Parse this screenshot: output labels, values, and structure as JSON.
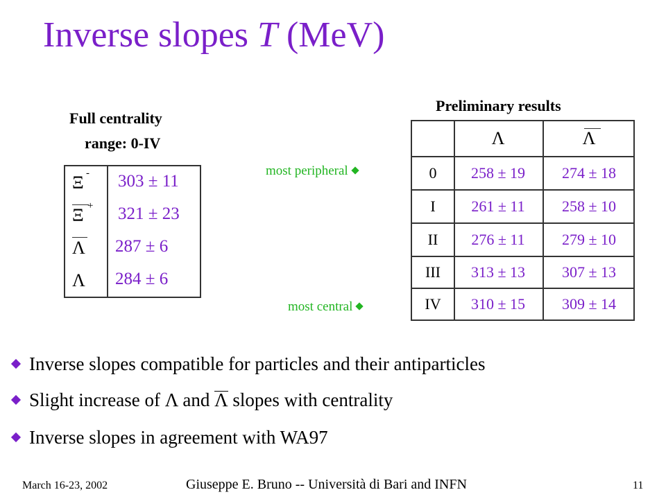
{
  "title": {
    "prefix": "Inverse slopes ",
    "variable": "T",
    "suffix": " (MeV)"
  },
  "left_table": {
    "caption_line1": "Full centrality",
    "caption_line2": "range: 0-IV",
    "rows": [
      {
        "symbol": "Ξ",
        "sup": "-",
        "bar": false,
        "value": "303 ± 11"
      },
      {
        "symbol": "Ξ",
        "sup": "+",
        "bar": true,
        "value": "321 ± 23"
      },
      {
        "symbol": "Λ",
        "sup": "",
        "bar": true,
        "value": "287 ± 6"
      },
      {
        "symbol": "Λ",
        "sup": "",
        "bar": false,
        "value": "284 ± 6"
      }
    ]
  },
  "right_table": {
    "caption": "Preliminary results",
    "headers": [
      "",
      "Λ",
      "Λ"
    ],
    "rows": [
      {
        "label": "0",
        "lambda": "258 ± 19",
        "antilambda": "274 ± 18"
      },
      {
        "label": "I",
        "lambda": "261 ± 11",
        "antilambda": "258 ± 10"
      },
      {
        "label": "II",
        "lambda": "276 ± 11",
        "antilambda": "279 ± 10"
      },
      {
        "label": "III",
        "lambda": "313 ± 13",
        "antilambda": "307 ± 13"
      },
      {
        "label": "IV",
        "lambda": "310 ± 15",
        "antilambda": "309 ± 14"
      }
    ]
  },
  "annotations": {
    "most_peripheral": "most peripheral",
    "most_central": "most central"
  },
  "bullets": [
    "Inverse slopes compatible  for particles and their antiparticles",
    {
      "a": "Slight increase of ",
      "b": "Λ",
      "c": " and ",
      "d": "Λ",
      "e": " slopes with centrality"
    },
    "Inverse slopes in agreement with WA97"
  ],
  "footer": {
    "date": "March 16-23, 2002",
    "author": "Giuseppe E. Bruno -- Università di Bari and INFN",
    "page": "11"
  },
  "colors": {
    "accent": "#7a1fc9",
    "annotation": "#22b522",
    "text": "#000000"
  }
}
